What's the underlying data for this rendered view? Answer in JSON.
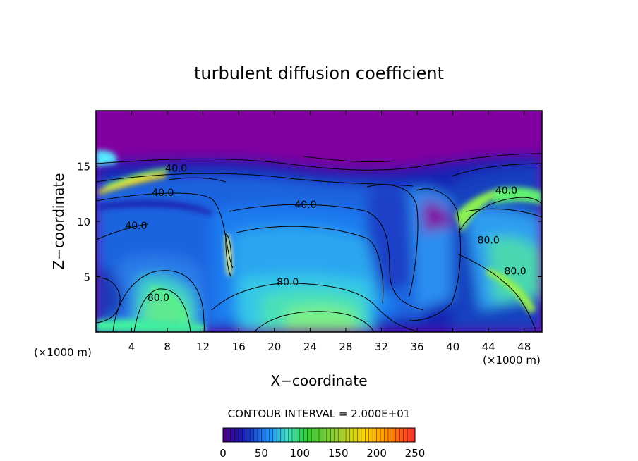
{
  "chart_data": {
    "type": "heatmap",
    "title": "turbulent diffusion coefficient",
    "xlabel": "X−coordinate",
    "ylabel": "Z−coordinate",
    "x_unit_left": "(×1000 m)",
    "x_unit_right": "(×1000 m)",
    "xlim": [
      0,
      50
    ],
    "ylim": [
      0,
      20
    ],
    "x_ticks": [
      4,
      8,
      12,
      16,
      20,
      24,
      28,
      32,
      36,
      40,
      44,
      48
    ],
    "y_ticks": [
      5,
      10,
      15
    ],
    "contour_interval_text": "CONTOUR INTERVAL = 2.000E+01",
    "contour_labels": [
      {
        "text": "40.0",
        "x": 9.0,
        "y": 14.5
      },
      {
        "text": "40.0",
        "x": 7.5,
        "y": 12.3
      },
      {
        "text": "40.0",
        "x": 4.5,
        "y": 9.3
      },
      {
        "text": "40.0",
        "x": 23.5,
        "y": 11.2
      },
      {
        "text": "80.0",
        "x": 21.5,
        "y": 4.2
      },
      {
        "text": "80.0",
        "x": 7.0,
        "y": 2.8
      },
      {
        "text": "80.0",
        "x": 44.0,
        "y": 8.0
      },
      {
        "text": "80.0",
        "x": 47.0,
        "y": 5.2
      },
      {
        "text": "40.0",
        "x": 46.0,
        "y": 12.5
      }
    ],
    "colorbar": {
      "min": 0,
      "max": 250,
      "tick_values": [
        0,
        50,
        100,
        150,
        200,
        250
      ],
      "tick_labels": [
        "0",
        "50",
        "100",
        "150",
        "200",
        "250"
      ],
      "stops": [
        {
          "value": 0,
          "color": "#4b0082"
        },
        {
          "value": 25,
          "color": "#1a1ab4"
        },
        {
          "value": 60,
          "color": "#1e90ff"
        },
        {
          "value": 85,
          "color": "#40e0c0"
        },
        {
          "value": 110,
          "color": "#32cd32"
        },
        {
          "value": 150,
          "color": "#9acd32"
        },
        {
          "value": 185,
          "color": "#ffd700"
        },
        {
          "value": 215,
          "color": "#ff8c00"
        },
        {
          "value": 250,
          "color": "#ff2a2a"
        }
      ]
    },
    "background_color": "#8000a0"
  }
}
